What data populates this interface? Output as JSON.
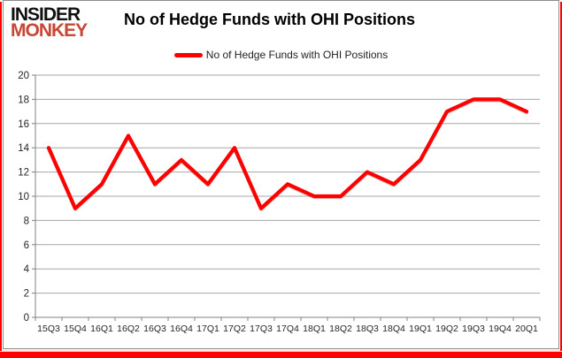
{
  "logo": {
    "line1": "INSIDER",
    "line2": "MONKEY"
  },
  "header": {
    "title": "No of Hedge Funds with OHI Positions"
  },
  "legend": {
    "label": "No of Hedge Funds with OHI Positions"
  },
  "colors": {
    "line": "#ff0000",
    "logo_accent": "#c74634",
    "grid": "#a6a6a6",
    "axis": "#808080",
    "tick_label": "#262626",
    "frame_red": "#ff0000",
    "box_border": "#8c8c8c"
  },
  "chart_data": {
    "type": "line",
    "title": "No of Hedge Funds with OHI Positions",
    "categories": [
      "15Q3",
      "15Q4",
      "16Q1",
      "16Q2",
      "16Q3",
      "16Q4",
      "17Q1",
      "17Q2",
      "17Q3",
      "17Q4",
      "18Q1",
      "18Q2",
      "18Q3",
      "18Q4",
      "19Q1",
      "19Q2",
      "19Q3",
      "19Q4",
      "20Q1"
    ],
    "series": [
      {
        "name": "No of Hedge Funds with OHI Positions",
        "values": [
          14,
          9,
          11,
          15,
          11,
          13,
          11,
          14,
          9,
          11,
          10,
          10,
          12,
          11,
          13,
          17,
          18,
          18,
          17
        ]
      }
    ],
    "xlabel": "",
    "ylabel": "",
    "ylim": [
      0,
      20
    ],
    "ytick_step": 2,
    "grid": "horizontal",
    "legend_position": "top-center"
  }
}
